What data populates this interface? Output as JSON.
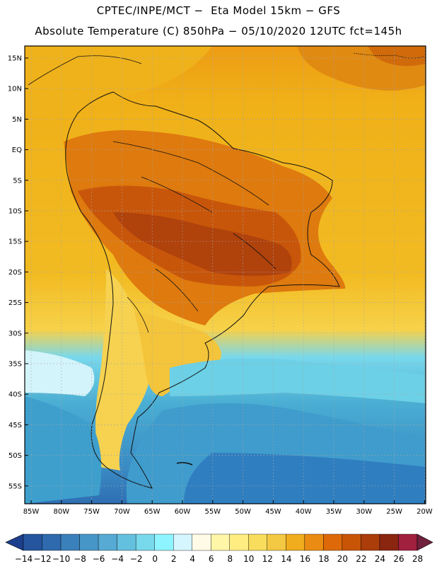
{
  "header": {
    "line1": "CPTEC/INPE/MCT −  Eta Model 15km − GFS",
    "line2": "Absolute Temperature (C) 850hPa − 05/10/2020 12UTC fct=145h"
  },
  "axes": {
    "lat_labels": [
      "15N",
      "10N",
      "5N",
      "EQ",
      "5S",
      "10S",
      "15S",
      "20S",
      "25S",
      "30S",
      "35S",
      "40S",
      "45S",
      "50S",
      "55S"
    ],
    "lon_labels": [
      "85W",
      "80W",
      "75W",
      "70W",
      "65W",
      "60W",
      "55W",
      "50W",
      "45W",
      "40W",
      "35W",
      "30W",
      "25W",
      "20W"
    ]
  },
  "colorbar": {
    "labels": [
      "-14",
      "-12",
      "-10",
      "-8",
      "-6",
      "-4",
      "-2",
      "0",
      "2",
      "4",
      "6",
      "8",
      "10",
      "12",
      "14",
      "16",
      "18",
      "20",
      "22",
      "24",
      "26",
      "28"
    ],
    "colors": [
      "#1b3f8c",
      "#24559e",
      "#2e6aad",
      "#3a80bb",
      "#4796c8",
      "#56aad3",
      "#64c0df",
      "#78d8ec",
      "#8ef4ff",
      "#d6f6ff",
      "#fffbe6",
      "#fff6a8",
      "#ffed82",
      "#f8dc5c",
      "#f3c843",
      "#f0ad1d",
      "#ea8b13",
      "#dd6908",
      "#c85505",
      "#aa3d0a",
      "#8a2510",
      "#a0203e",
      "#70203c"
    ]
  },
  "palette": {
    "ocean_warm": "#f0b018",
    "land_hot": "#b9480c",
    "land_warm": "#d8690b",
    "cold_sea": "#44b2d4",
    "deep_cold": "#2f79bb"
  }
}
